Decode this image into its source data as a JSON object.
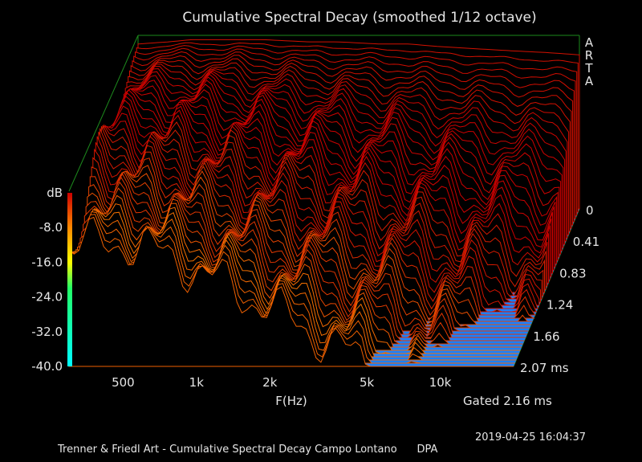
{
  "chart_data": {
    "type": "waterfall",
    "title": "Cumulative Spectral Decay (smoothed 1/12 octave)",
    "xlabel": "F(Hz)",
    "ylabel": "dB",
    "zlabel": "ms",
    "x_scale": "log",
    "xlim": [
      300,
      20000
    ],
    "ylim": [
      -40,
      0
    ],
    "time_lim": [
      0,
      2.07
    ],
    "x_ticks": [
      {
        "value": 500,
        "label": "500"
      },
      {
        "value": 1000,
        "label": "1k"
      },
      {
        "value": 2000,
        "label": "2k"
      },
      {
        "value": 5000,
        "label": "5k"
      },
      {
        "value": 10000,
        "label": "10k"
      }
    ],
    "y_ticks": [
      {
        "value": 0,
        "label": "dB"
      },
      {
        "value": -8,
        "label": "-8.0"
      },
      {
        "value": -16,
        "label": "-16.0"
      },
      {
        "value": -24,
        "label": "-24.0"
      },
      {
        "value": -32,
        "label": "-32.0"
      },
      {
        "value": -40,
        "label": "-40.0"
      }
    ],
    "time_ticks": [
      {
        "value": 0,
        "label": "0"
      },
      {
        "value": 0.41,
        "label": "0.41"
      },
      {
        "value": 0.83,
        "label": "0.83"
      },
      {
        "value": 1.24,
        "label": "1.24"
      },
      {
        "value": 1.66,
        "label": "1.66"
      },
      {
        "value": 2.07,
        "label": "2.07 ms"
      }
    ],
    "gate_label": "Gated 2.16 ms",
    "datetime": "2019-04-25  16:04:37",
    "logo_letters": [
      "A",
      "R",
      "T",
      "A"
    ],
    "footer": "Trenner & Friedl Art - Cumulative Spectral Decay Campo Lontano      DPA",
    "slice_count": 50,
    "first_slice": {
      "freq_hz": [
        300,
        400,
        500,
        700,
        1000,
        1500,
        2000,
        3000,
        4000,
        5000,
        7000,
        10000,
        15000,
        20000
      ],
      "db": [
        -2,
        -1.5,
        -1,
        -1,
        -1,
        -1.5,
        -1.5,
        -2,
        -2,
        -2.5,
        -3,
        -3.5,
        -4,
        -4.5
      ]
    },
    "colors": {
      "floor": "#1a80ff",
      "frame": "#1d8a1d",
      "colormap": [
        "#00ffff",
        "#ffff00",
        "#ff0000"
      ]
    }
  }
}
